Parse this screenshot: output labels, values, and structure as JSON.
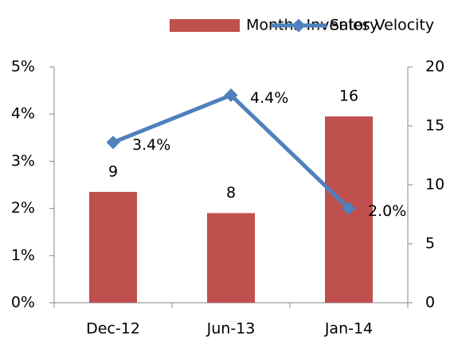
{
  "chart_data": {
    "type": "bar-line",
    "categories": [
      "Dec-12",
      "Jun-13",
      "Jan-14"
    ],
    "series": [
      {
        "name": "Months Inventory",
        "type": "bar",
        "axis": "y2",
        "color": "#c0504d",
        "values": [
          9.4,
          7.6,
          15.8
        ],
        "value_labels": [
          "9",
          "8",
          "16"
        ]
      },
      {
        "name": "Sales Velocity",
        "type": "line",
        "axis": "y",
        "color": "#4f81bd",
        "values": [
          3.4,
          4.4,
          2.0
        ],
        "value_labels": [
          "3.4%",
          "4.4%",
          "2.0%"
        ]
      }
    ],
    "ylim": [
      0,
      5
    ],
    "yticks": [
      {
        "value": 0,
        "label": "0%"
      },
      {
        "value": 1,
        "label": "1%"
      },
      {
        "value": 2,
        "label": "2%"
      },
      {
        "value": 3,
        "label": "3%"
      },
      {
        "value": 4,
        "label": "4%"
      },
      {
        "value": 5,
        "label": "5%"
      }
    ],
    "y2lim": [
      0,
      20
    ],
    "y2ticks": [
      0,
      5,
      10,
      15,
      20
    ],
    "legend": "top",
    "grid": false
  }
}
